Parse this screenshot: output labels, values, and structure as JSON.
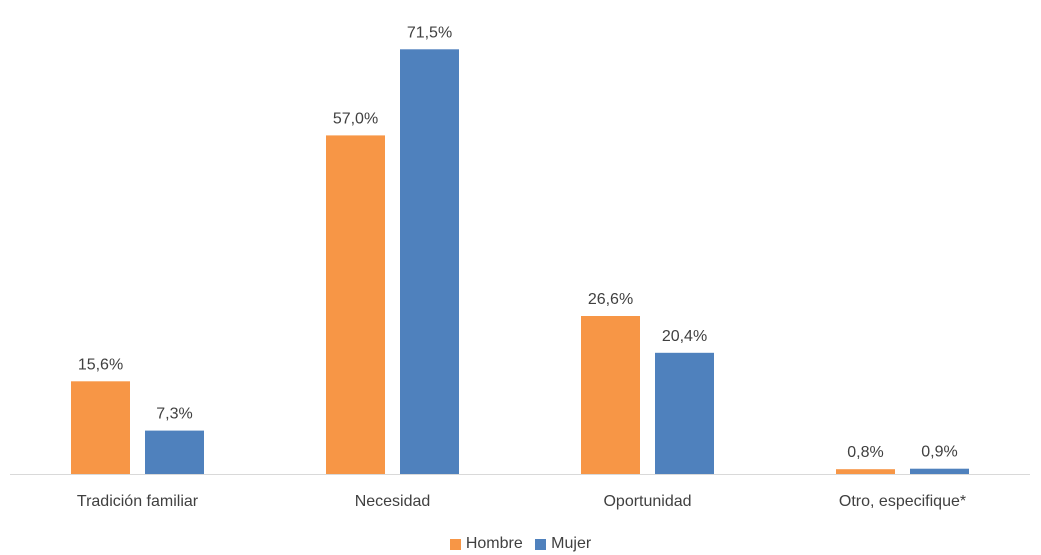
{
  "chart_data": {
    "type": "bar",
    "title": "",
    "xlabel": "",
    "ylabel": "",
    "ylim": [
      0,
      80
    ],
    "categories": [
      "Tradición familiar",
      "Necesidad",
      "Oportunidad",
      "Otro, especifique*"
    ],
    "series": [
      {
        "name": "Hombre",
        "color": "#F79646",
        "values": [
          15.6,
          57.0,
          26.6,
          0.8
        ],
        "labels": [
          "15,6%",
          "57,0%",
          "26,6%",
          "0,8%"
        ]
      },
      {
        "name": "Mujer",
        "color": "#4F81BD",
        "values": [
          7.3,
          71.5,
          20.4,
          0.9
        ],
        "labels": [
          "7,3%",
          "71,5%",
          "20,4%",
          "0,9%"
        ]
      }
    ],
    "grid": false,
    "legend": "bottom"
  },
  "legend": {
    "hombre": "Hombre",
    "mujer": "Mujer"
  }
}
